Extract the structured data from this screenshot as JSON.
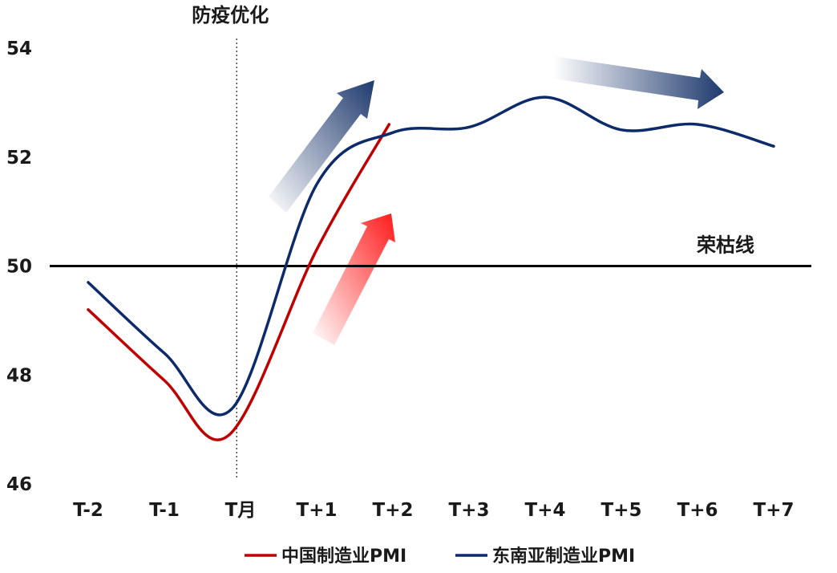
{
  "chart_data": {
    "type": "line",
    "categories": [
      "T-2",
      "T-1",
      "T月",
      "T+1",
      "T+2",
      "T+3",
      "T+4",
      "T+5",
      "T+6",
      "T+7"
    ],
    "ylim": [
      46,
      54
    ],
    "yticks": [
      46,
      48,
      50,
      52,
      54
    ],
    "grid": false,
    "series": [
      {
        "name": "中国制造业PMI",
        "color": "#c00000",
        "points": [
          [
            0,
            49.2
          ],
          [
            1,
            47.9
          ],
          [
            1.85,
            46.9
          ],
          [
            3,
            50.3
          ],
          [
            3.95,
            52.6
          ]
        ]
      },
      {
        "name": "东南亚制造业PMI",
        "color": "#0d2a6b",
        "points": [
          [
            0,
            49.7
          ],
          [
            1,
            48.4
          ],
          [
            1.9,
            47.4
          ],
          [
            3,
            51.5
          ],
          [
            4,
            52.45
          ],
          [
            5,
            52.55
          ],
          [
            6,
            53.1
          ],
          [
            7,
            52.5
          ],
          [
            8,
            52.6
          ],
          [
            9,
            52.2
          ]
        ]
      }
    ],
    "annotations": {
      "event_label": "防疫优化",
      "event_x": 1.95,
      "reference_label": "荣枯线",
      "reference_y": 50
    },
    "arrows": {
      "blue_colors": [
        "#ffffff",
        "#1f3a6e"
      ],
      "red_colors": [
        "#ffffff",
        "#ff1a1a"
      ]
    },
    "legend_position": "bottom"
  }
}
